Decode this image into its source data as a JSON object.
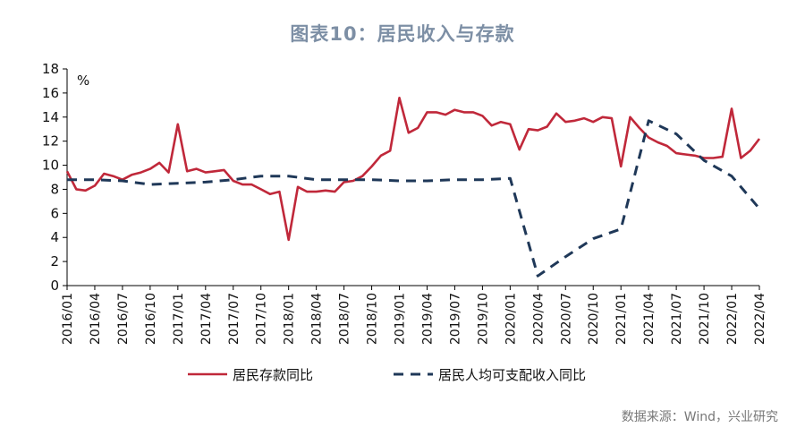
{
  "title": "图表10：居民收入与存款",
  "source": "数据来源：Wind，兴业研究",
  "chart_data": {
    "type": "line",
    "unit": "%",
    "ylim": [
      0,
      18
    ],
    "yticks": [
      0,
      2,
      4,
      6,
      8,
      10,
      12,
      14,
      16,
      18
    ],
    "xticks": [
      "2016/01",
      "2016/04",
      "2016/07",
      "2016/10",
      "2017/01",
      "2017/04",
      "2017/07",
      "2017/10",
      "2018/01",
      "2018/04",
      "2018/07",
      "2018/10",
      "2019/01",
      "2019/04",
      "2019/07",
      "2019/10",
      "2020/01",
      "2020/04",
      "2020/07",
      "2020/10",
      "2021/01",
      "2021/04",
      "2021/07",
      "2021/10",
      "2022/01",
      "2022/04"
    ],
    "start_month": "2016/01",
    "legend_position": "bottom",
    "grid": false,
    "series": [
      {
        "name": "居民存款同比",
        "color": "#c0283a",
        "style": "solid",
        "values": [
          9.5,
          8.0,
          7.9,
          8.3,
          9.3,
          9.1,
          8.8,
          9.2,
          9.4,
          9.7,
          10.2,
          9.4,
          13.4,
          9.5,
          9.7,
          9.4,
          9.5,
          9.6,
          8.7,
          8.4,
          8.4,
          8.0,
          7.6,
          7.8,
          3.8,
          8.2,
          7.8,
          7.8,
          7.9,
          7.8,
          8.6,
          8.7,
          9.1,
          9.9,
          10.8,
          11.2,
          15.6,
          12.7,
          13.1,
          14.4,
          14.4,
          14.2,
          14.6,
          14.4,
          14.4,
          14.1,
          13.3,
          13.6,
          13.4,
          11.3,
          13.0,
          12.9,
          13.2,
          14.3,
          13.6,
          13.7,
          13.9,
          13.6,
          14.0,
          13.9,
          9.9,
          14.0,
          13.1,
          12.3,
          11.9,
          11.6,
          11.0,
          10.9,
          10.8,
          10.6,
          10.6,
          10.7,
          14.7,
          10.6,
          11.2,
          12.2
        ]
      },
      {
        "name": "居民人均可支配收入同比",
        "color": "#1f3858",
        "style": "dashed",
        "points": [
          {
            "x": "2016/01",
            "y": 8.8
          },
          {
            "x": "2016/04",
            "y": 8.8
          },
          {
            "x": "2016/07",
            "y": 8.7
          },
          {
            "x": "2016/10",
            "y": 8.4
          },
          {
            "x": "2017/01",
            "y": 8.5
          },
          {
            "x": "2017/04",
            "y": 8.6
          },
          {
            "x": "2017/07",
            "y": 8.8
          },
          {
            "x": "2017/10",
            "y": 9.1
          },
          {
            "x": "2018/01",
            "y": 9.1
          },
          {
            "x": "2018/04",
            "y": 8.8
          },
          {
            "x": "2018/07",
            "y": 8.8
          },
          {
            "x": "2018/10",
            "y": 8.8
          },
          {
            "x": "2019/01",
            "y": 8.7
          },
          {
            "x": "2019/04",
            "y": 8.7
          },
          {
            "x": "2019/07",
            "y": 8.8
          },
          {
            "x": "2019/10",
            "y": 8.8
          },
          {
            "x": "2020/01",
            "y": 8.9
          },
          {
            "x": "2020/04",
            "y": 0.8
          },
          {
            "x": "2020/07",
            "y": 2.4
          },
          {
            "x": "2020/10",
            "y": 3.9
          },
          {
            "x": "2021/01",
            "y": 4.7
          },
          {
            "x": "2021/04",
            "y": 13.7
          },
          {
            "x": "2021/07",
            "y": 12.6
          },
          {
            "x": "2021/10",
            "y": 10.4
          },
          {
            "x": "2022/01",
            "y": 9.1
          },
          {
            "x": "2022/04",
            "y": 6.4
          }
        ]
      }
    ]
  }
}
